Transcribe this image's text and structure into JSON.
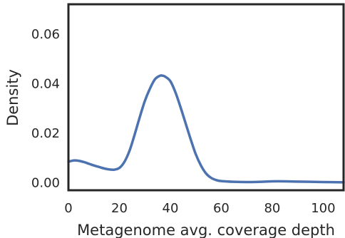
{
  "chart_data": {
    "type": "line",
    "title": "",
    "xlabel": "Metagenome avg. coverage depth",
    "ylabel": "Density",
    "xlim": [
      0,
      108
    ],
    "ylim": [
      -0.003,
      0.072
    ],
    "xticks": [
      0,
      20,
      40,
      60,
      80,
      100
    ],
    "yticks": [
      0.0,
      0.02,
      0.04,
      0.06
    ],
    "xtick_labels": [
      "0",
      "20",
      "40",
      "60",
      "80",
      "100"
    ],
    "ytick_labels": [
      "0.00",
      "0.02",
      "0.04",
      "0.06"
    ],
    "grid": false,
    "line_color": "#4c72b0",
    "series": [
      {
        "x": [
          0,
          2,
          4,
          6,
          8,
          10,
          12,
          14,
          16,
          18,
          20,
          22,
          24,
          26,
          28,
          30,
          32,
          34,
          36,
          37,
          38,
          40,
          42,
          44,
          46,
          48,
          50,
          52,
          54,
          56,
          58,
          60,
          65,
          70,
          75,
          80,
          85,
          90,
          95,
          100,
          108
        ],
        "y": [
          0.0085,
          0.009,
          0.0089,
          0.0084,
          0.0077,
          0.007,
          0.0064,
          0.0058,
          0.0054,
          0.0053,
          0.006,
          0.0085,
          0.013,
          0.0195,
          0.0265,
          0.033,
          0.038,
          0.0418,
          0.0432,
          0.0432,
          0.0428,
          0.041,
          0.0365,
          0.0305,
          0.024,
          0.0175,
          0.0115,
          0.007,
          0.0038,
          0.002,
          0.0011,
          0.0007,
          0.0004,
          0.0003,
          0.0004,
          0.0006,
          0.0006,
          0.0005,
          0.0004,
          0.0003,
          0.0002
        ]
      }
    ]
  }
}
